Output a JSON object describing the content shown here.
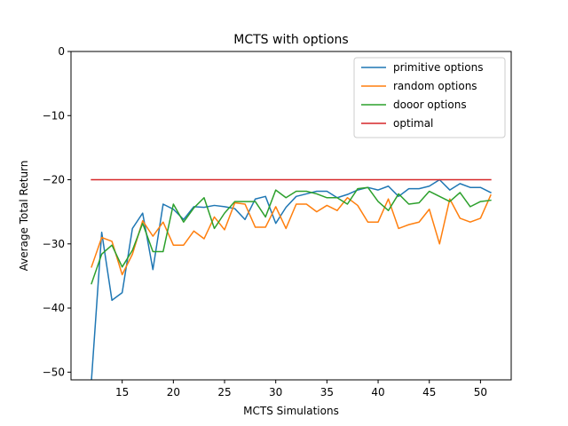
{
  "chart_data": {
    "type": "line",
    "title": "MCTS with options",
    "xlabel": "MCTS Simulations",
    "ylabel": "Average Total Return",
    "xlim": [
      10,
      53
    ],
    "ylim": [
      -51.2,
      0
    ],
    "xticks": [
      15,
      20,
      25,
      30,
      35,
      40,
      45,
      50
    ],
    "yticks": [
      0,
      -10,
      -20,
      -30,
      -40,
      -50
    ],
    "ytick_labels": [
      "0",
      "−10",
      "−20",
      "−30",
      "−40",
      "−50"
    ],
    "legend_position": "top-right",
    "grid": false,
    "x": [
      12,
      13,
      14,
      15,
      16,
      17,
      18,
      19,
      20,
      21,
      22,
      23,
      24,
      25,
      26,
      27,
      28,
      29,
      30,
      31,
      32,
      33,
      34,
      35,
      36,
      37,
      38,
      39,
      40,
      41,
      42,
      43,
      44,
      45,
      46,
      47,
      48,
      49,
      50,
      51
    ],
    "series": [
      {
        "name": "primitive options",
        "color": "#1f77b4",
        "values": [
          -51.2,
          -28.2,
          -38.8,
          -37.6,
          -27.6,
          -25.2,
          -34.0,
          -23.8,
          -24.6,
          -26.2,
          -24.2,
          -24.3,
          -24.0,
          -24.2,
          -24.5,
          -26.2,
          -23.0,
          -22.6,
          -26.8,
          -24.3,
          -22.6,
          -22.2,
          -21.8,
          -21.8,
          -22.8,
          -22.3,
          -21.6,
          -21.2,
          -21.6,
          -21.0,
          -22.6,
          -21.4,
          -21.4,
          -21.0,
          -20.0,
          -21.6,
          -20.6,
          -21.2,
          -21.2,
          -22.0
        ]
      },
      {
        "name": "random options",
        "color": "#ff7f0e",
        "values": [
          -33.6,
          -29.0,
          -29.6,
          -34.8,
          -31.6,
          -26.4,
          -28.8,
          -26.6,
          -30.2,
          -30.2,
          -28.0,
          -29.2,
          -25.8,
          -27.8,
          -23.6,
          -23.8,
          -27.4,
          -27.4,
          -24.2,
          -27.6,
          -23.8,
          -23.8,
          -25.0,
          -24.0,
          -24.8,
          -22.8,
          -24.0,
          -26.6,
          -26.6,
          -23.0,
          -27.6,
          -27.0,
          -26.6,
          -24.6,
          -30.0,
          -23.0,
          -26.0,
          -26.6,
          -26.0,
          -22.4
        ]
      },
      {
        "name": "dooor options",
        "color": "#2ca02c",
        "values": [
          -36.2,
          -31.6,
          -30.2,
          -33.6,
          -31.0,
          -26.8,
          -31.2,
          -31.2,
          -23.8,
          -26.6,
          -24.4,
          -22.8,
          -27.6,
          -25.2,
          -23.4,
          -23.4,
          -23.4,
          -25.8,
          -21.6,
          -22.8,
          -21.8,
          -21.8,
          -22.2,
          -22.8,
          -22.8,
          -23.8,
          -21.4,
          -21.2,
          -23.4,
          -24.8,
          -22.2,
          -23.8,
          -23.6,
          -21.8,
          -22.6,
          -23.4,
          -22.0,
          -24.2,
          -23.4,
          -23.2
        ]
      },
      {
        "name": "optimal",
        "color": "#d62728",
        "values": [
          -20,
          -20,
          -20,
          -20,
          -20,
          -20,
          -20,
          -20,
          -20,
          -20,
          -20,
          -20,
          -20,
          -20,
          -20,
          -20,
          -20,
          -20,
          -20,
          -20,
          -20,
          -20,
          -20,
          -20,
          -20,
          -20,
          -20,
          -20,
          -20,
          -20,
          -20,
          -20,
          -20,
          -20,
          -20,
          -20,
          -20,
          -20,
          -20,
          -20
        ]
      }
    ]
  }
}
